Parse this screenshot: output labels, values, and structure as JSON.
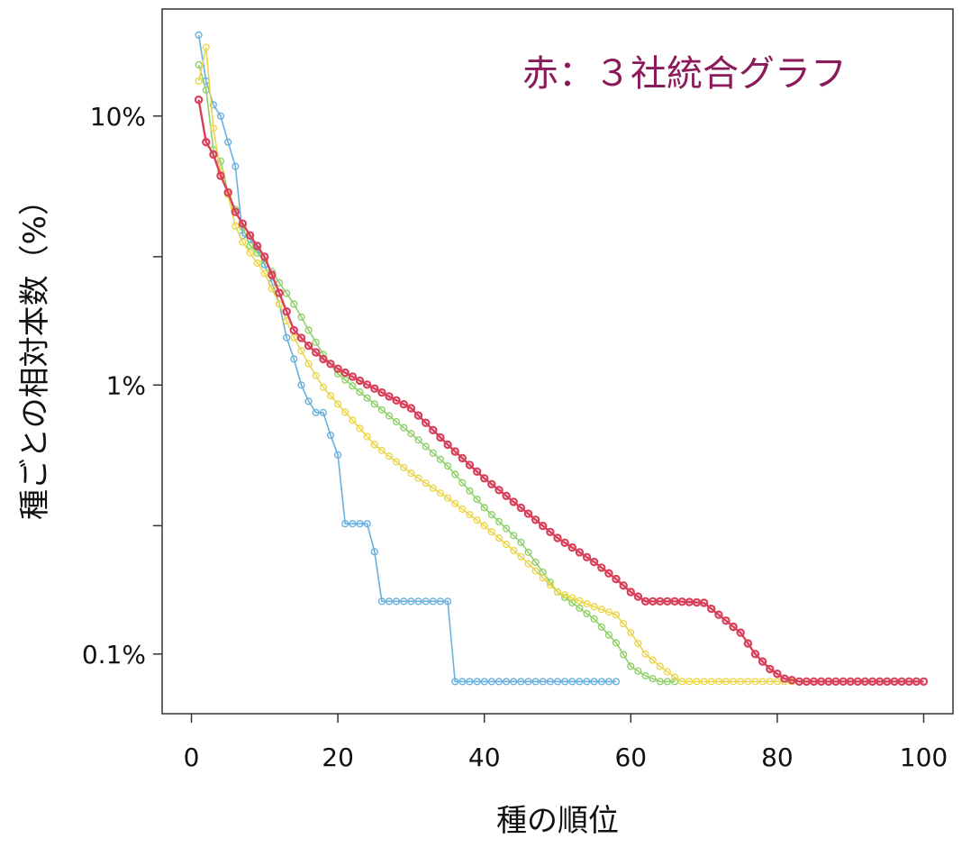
{
  "chart_data": {
    "type": "line",
    "ylabel": "種ごとの相対本数（%）",
    "xlabel": "種の順位",
    "annotation": "赤：３社統合グラフ",
    "x_scale": "linear",
    "y_scale": "log",
    "xlim": [
      -4,
      104
    ],
    "ylim": [
      0.06,
      25
    ],
    "x_ticks": [
      0,
      20,
      40,
      60,
      80,
      100
    ],
    "x_tick_labels": [
      "0",
      "20",
      "40",
      "60",
      "80",
      "100"
    ],
    "y_ticks": [
      0.1,
      1,
      10
    ],
    "y_tick_labels": [
      "0.1%",
      "1%",
      "10%"
    ],
    "y_minor_ticks": [
      0.3,
      3
    ],
    "grid": false,
    "legend": "none",
    "series": [
      {
        "color": "#6ab0de",
        "anchors": [
          [
            1,
            20
          ],
          [
            2,
            13.5
          ],
          [
            3,
            11
          ],
          [
            4,
            10
          ],
          [
            5,
            8
          ],
          [
            6,
            6.5
          ],
          [
            7,
            3.6
          ],
          [
            8,
            3.5
          ],
          [
            9,
            3.2
          ],
          [
            10,
            2.8
          ],
          [
            11,
            2.4
          ],
          [
            12,
            2.0
          ],
          [
            13,
            1.5
          ],
          [
            14,
            1.25
          ],
          [
            15,
            1.0
          ],
          [
            16,
            0.87
          ],
          [
            17,
            0.79
          ],
          [
            18,
            0.79
          ],
          [
            19,
            0.65
          ],
          [
            20,
            0.55
          ],
          [
            21,
            0.305
          ],
          [
            22,
            0.305
          ],
          [
            23,
            0.305
          ],
          [
            24,
            0.305
          ],
          [
            25,
            0.24
          ],
          [
            26,
            0.157
          ],
          [
            35,
            0.157
          ],
          [
            36,
            0.079
          ],
          [
            58,
            0.079
          ]
        ]
      },
      {
        "color": "#8fd16a",
        "anchors": [
          [
            1,
            15.5
          ],
          [
            2,
            12.5
          ],
          [
            3,
            7.5
          ],
          [
            4,
            6.8
          ],
          [
            5,
            5.2
          ],
          [
            6,
            4.5
          ],
          [
            8,
            3.3
          ],
          [
            10,
            2.9
          ],
          [
            12,
            2.4
          ],
          [
            14,
            2.0
          ],
          [
            16,
            1.6
          ],
          [
            18,
            1.3
          ],
          [
            20,
            1.1
          ],
          [
            25,
            0.85
          ],
          [
            30,
            0.66
          ],
          [
            35,
            0.5
          ],
          [
            40,
            0.35
          ],
          [
            45,
            0.26
          ],
          [
            50,
            0.17
          ],
          [
            55,
            0.135
          ],
          [
            58,
            0.11
          ],
          [
            60,
            0.09
          ],
          [
            62,
            0.083
          ],
          [
            64,
            0.079
          ],
          [
            66,
            0.079
          ]
        ]
      },
      {
        "color": "#ecd64c",
        "anchors": [
          [
            1,
            13.5
          ],
          [
            2,
            18
          ],
          [
            3,
            9
          ],
          [
            4,
            6.2
          ],
          [
            5,
            5.1
          ],
          [
            6,
            3.9
          ],
          [
            7,
            3.4
          ],
          [
            8,
            3.1
          ],
          [
            10,
            2.6
          ],
          [
            12,
            2.0
          ],
          [
            14,
            1.5
          ],
          [
            16,
            1.2
          ],
          [
            18,
            0.98
          ],
          [
            20,
            0.85
          ],
          [
            25,
            0.6
          ],
          [
            30,
            0.47
          ],
          [
            35,
            0.38
          ],
          [
            40,
            0.3
          ],
          [
            45,
            0.23
          ],
          [
            50,
            0.17
          ],
          [
            55,
            0.15
          ],
          [
            58,
            0.14
          ],
          [
            60,
            0.12
          ],
          [
            62,
            0.1
          ],
          [
            64,
            0.09
          ],
          [
            66,
            0.082
          ],
          [
            67,
            0.079
          ],
          [
            82,
            0.079
          ]
        ]
      },
      {
        "color": "#d9405a",
        "anchors": [
          [
            1,
            11.5
          ],
          [
            2,
            8.0
          ],
          [
            3,
            7.2
          ],
          [
            4,
            6.0
          ],
          [
            5,
            5.2
          ],
          [
            6,
            4.4
          ],
          [
            8,
            3.6
          ],
          [
            10,
            3.0
          ],
          [
            12,
            2.2
          ],
          [
            14,
            1.6
          ],
          [
            16,
            1.4
          ],
          [
            18,
            1.25
          ],
          [
            20,
            1.15
          ],
          [
            25,
            0.97
          ],
          [
            30,
            0.82
          ],
          [
            35,
            0.6
          ],
          [
            40,
            0.45
          ],
          [
            45,
            0.35
          ],
          [
            50,
            0.27
          ],
          [
            55,
            0.22
          ],
          [
            58,
            0.19
          ],
          [
            60,
            0.17
          ],
          [
            62,
            0.157
          ],
          [
            66,
            0.157
          ],
          [
            70,
            0.155
          ],
          [
            72,
            0.14
          ],
          [
            75,
            0.12
          ],
          [
            77,
            0.1
          ],
          [
            79,
            0.088
          ],
          [
            81,
            0.081
          ],
          [
            83,
            0.079
          ],
          [
            100,
            0.079
          ]
        ]
      }
    ]
  }
}
